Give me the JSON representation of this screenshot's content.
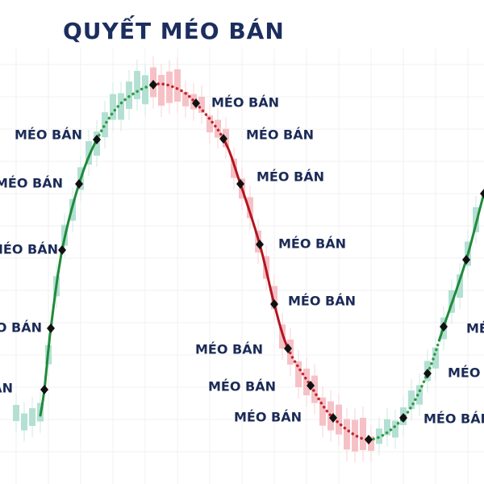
{
  "title": "QUYẾT MÉO BÁN",
  "labels": [
    "MÉO BÁN",
    "MÉO BÁN",
    "MÉO BÁN",
    "MÉO BÁN",
    "MÉO BÁN",
    "MÉO BÁN",
    "MÉO BÁN",
    "MÉO BÁN",
    "MÉO BÁN",
    "MÉO BÁN",
    "MÉO BÁN",
    "MÉO BÁN",
    "MÉO BÁN",
    "MÉO BÁN",
    "MÉO BÁN",
    "MÉO BÁN"
  ]
}
